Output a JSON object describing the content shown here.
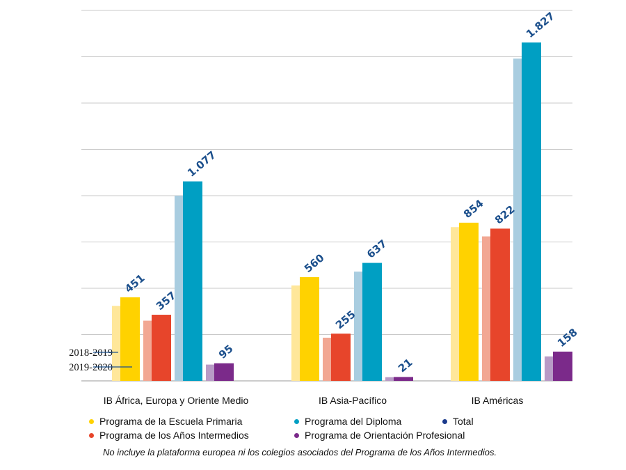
{
  "chart_data": {
    "type": "bar",
    "categories": [
      "IB África, Europa y Oriente Medio",
      "IB Asia-Pacífico",
      "IB Américas"
    ],
    "ylim": [
      0,
      2000
    ],
    "grid": true,
    "years": [
      "2018-2019",
      "2019-2020"
    ],
    "series": [
      {
        "name": "Programa de la Escuela Primaria",
        "color": "#ffd200",
        "light_color": "#ffe79a",
        "values_2018_2019": [
          405,
          515,
          830
        ],
        "values_2019_2020": [
          451,
          560,
          854
        ],
        "labels": [
          "451",
          "560",
          "854"
        ]
      },
      {
        "name": "Programa de los Años Intermedios",
        "color": "#e7452b",
        "light_color": "#f2a793",
        "values_2018_2019": [
          325,
          233,
          780
        ],
        "values_2019_2020": [
          357,
          255,
          822
        ],
        "labels": [
          "357",
          "255",
          "822"
        ]
      },
      {
        "name": "Programa del Diploma",
        "color": "#009fc3",
        "light_color": "#a9cde0",
        "values_2018_2019": [
          1000,
          590,
          1740
        ],
        "values_2019_2020": [
          1077,
          637,
          1827
        ],
        "labels": [
          "1.077",
          "637",
          "1.827"
        ]
      },
      {
        "name": "Programa de Orientación Profesional",
        "color": "#7b2a8a",
        "light_color": "#b89bc6",
        "values_2018_2019": [
          88,
          20,
          132
        ],
        "values_2019_2020": [
          95,
          21,
          158
        ],
        "labels": [
          "95",
          "21",
          "158"
        ]
      }
    ],
    "total_legend": {
      "name": "Total",
      "color": "#1b3a8c"
    },
    "value_label_color": "#1b4f8c",
    "footnote": "No incluye la plataforma europea ni los colegios asociados del Programa de los Años Intermedios."
  }
}
